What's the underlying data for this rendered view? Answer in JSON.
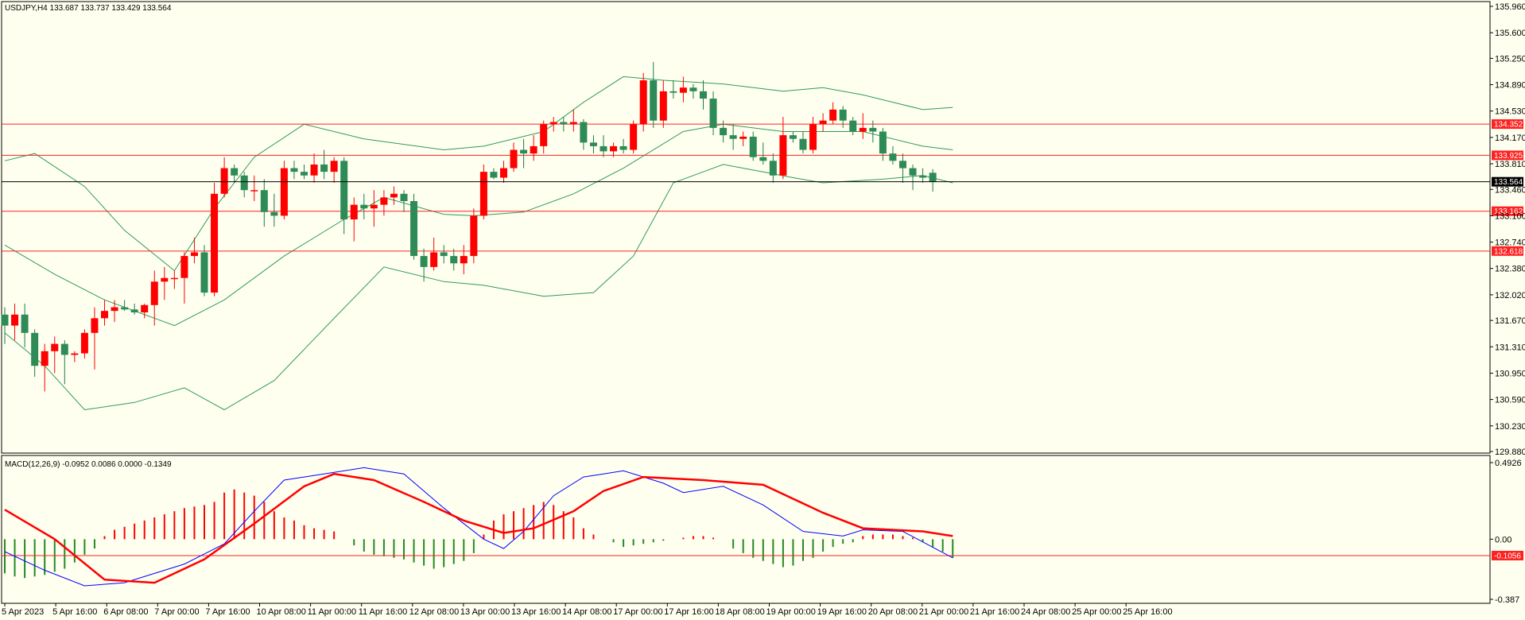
{
  "chart_data": {
    "type": "candlestick",
    "symbol_header": "USDJPY,H4  133.687 133.737 133.429 133.564",
    "price_ylim": [
      129.88,
      135.96
    ],
    "price_ticks": [
      "135.960",
      "135.600",
      "135.250",
      "134.890",
      "134.530",
      "134.170",
      "133.810",
      "133.460",
      "133.100",
      "132.740",
      "132.380",
      "132.020",
      "131.670",
      "131.310",
      "130.950",
      "130.590",
      "130.230",
      "129.880"
    ],
    "x_ticks": [
      "5 Apr 2023",
      "5 Apr 16:00",
      "6 Apr 08:00",
      "7 Apr 00:00",
      "7 Apr 16:00",
      "10 Apr 08:00",
      "11 Apr 00:00",
      "11 Apr 16:00",
      "12 Apr 08:00",
      "13 Apr 00:00",
      "13 Apr 16:00",
      "14 Apr 08:00",
      "17 Apr 00:00",
      "17 Apr 16:00",
      "18 Apr 08:00",
      "19 Apr 00:00",
      "19 Apr 16:00",
      "20 Apr 08:00",
      "21 Apr 00:00",
      "21 Apr 16:00",
      "24 Apr 08:00",
      "25 Apr 00:00",
      "25 Apr 16:00"
    ],
    "current_price": "133.564",
    "horizontal_levels": [
      "134.352",
      "133.925",
      "133.162",
      "132.618"
    ],
    "candles": [
      [
        131.75,
        131.85,
        131.35,
        131.6
      ],
      [
        131.6,
        131.9,
        131.4,
        131.75
      ],
      [
        131.75,
        131.9,
        131.3,
        131.5
      ],
      [
        131.5,
        131.55,
        130.9,
        131.05
      ],
      [
        131.05,
        131.35,
        130.7,
        131.25
      ],
      [
        131.25,
        131.45,
        130.95,
        131.35
      ],
      [
        131.35,
        131.4,
        130.8,
        131.2
      ],
      [
        131.2,
        131.25,
        131.1,
        131.22
      ],
      [
        131.22,
        131.55,
        131.15,
        131.5
      ],
      [
        131.5,
        131.85,
        131.0,
        131.7
      ],
      [
        131.7,
        131.95,
        131.6,
        131.8
      ],
      [
        131.8,
        131.95,
        131.65,
        131.85
      ],
      [
        131.85,
        131.95,
        131.8,
        131.82
      ],
      [
        131.82,
        131.9,
        131.75,
        131.78
      ],
      [
        131.78,
        131.9,
        131.7,
        131.88
      ],
      [
        131.88,
        132.35,
        131.6,
        132.2
      ],
      [
        132.2,
        132.4,
        131.95,
        132.25
      ],
      [
        132.25,
        132.35,
        132.1,
        132.25
      ],
      [
        132.25,
        132.6,
        131.9,
        132.55
      ],
      [
        132.55,
        132.8,
        132.45,
        132.6
      ],
      [
        132.6,
        132.7,
        132.0,
        132.05
      ],
      [
        132.05,
        133.55,
        132.0,
        133.4
      ],
      [
        133.4,
        133.9,
        133.35,
        133.75
      ],
      [
        133.75,
        133.8,
        133.55,
        133.65
      ],
      [
        133.65,
        133.7,
        133.35,
        133.45
      ],
      [
        133.45,
        133.65,
        133.3,
        133.45
      ],
      [
        133.45,
        133.6,
        132.95,
        133.15
      ],
      [
        133.15,
        133.4,
        132.95,
        133.1
      ],
      [
        133.1,
        133.85,
        133.05,
        133.75
      ],
      [
        133.75,
        133.85,
        133.6,
        133.7
      ],
      [
        133.7,
        133.8,
        133.6,
        133.65
      ],
      [
        133.65,
        133.95,
        133.55,
        133.8
      ],
      [
        133.8,
        134.0,
        133.6,
        133.7
      ],
      [
        133.7,
        133.9,
        133.55,
        133.85
      ],
      [
        133.85,
        133.9,
        132.85,
        133.05
      ],
      [
        133.05,
        133.35,
        132.75,
        133.25
      ],
      [
        133.25,
        133.4,
        133.05,
        133.2
      ],
      [
        133.2,
        133.45,
        132.95,
        133.25
      ],
      [
        133.25,
        133.45,
        133.1,
        133.35
      ],
      [
        133.35,
        133.5,
        133.25,
        133.4
      ],
      [
        133.4,
        133.45,
        133.15,
        133.3
      ],
      [
        133.3,
        133.4,
        132.5,
        132.55
      ],
      [
        132.55,
        132.65,
        132.2,
        132.4
      ],
      [
        132.4,
        132.8,
        132.35,
        132.6
      ],
      [
        132.6,
        132.7,
        132.45,
        132.55
      ],
      [
        132.55,
        132.65,
        132.35,
        132.45
      ],
      [
        132.45,
        132.7,
        132.3,
        132.55
      ],
      [
        132.55,
        133.2,
        132.45,
        133.1
      ],
      [
        133.1,
        133.8,
        133.05,
        133.7
      ],
      [
        133.7,
        133.75,
        133.6,
        133.62
      ],
      [
        133.62,
        133.85,
        133.55,
        133.75
      ],
      [
        133.75,
        134.1,
        133.7,
        134.0
      ],
      [
        134.0,
        134.15,
        133.75,
        133.95
      ],
      [
        133.95,
        134.2,
        133.85,
        134.05
      ],
      [
        134.05,
        134.4,
        133.95,
        134.35
      ],
      [
        134.35,
        134.45,
        134.25,
        134.38
      ],
      [
        134.38,
        134.45,
        134.25,
        134.35
      ],
      [
        134.35,
        134.55,
        134.25,
        134.38
      ],
      [
        134.38,
        134.42,
        134.0,
        134.1
      ],
      [
        134.1,
        134.2,
        133.95,
        134.05
      ],
      [
        134.05,
        134.2,
        133.9,
        133.98
      ],
      [
        133.98,
        134.1,
        133.9,
        134.05
      ],
      [
        134.05,
        134.15,
        133.95,
        134.0
      ],
      [
        134.0,
        134.4,
        133.95,
        134.35
      ],
      [
        134.35,
        135.05,
        134.25,
        134.95
      ],
      [
        134.95,
        135.2,
        134.3,
        134.4
      ],
      [
        134.4,
        134.95,
        134.3,
        134.8
      ],
      [
        134.8,
        134.95,
        134.7,
        134.78
      ],
      [
        134.78,
        135.0,
        134.65,
        134.85
      ],
      [
        134.85,
        134.9,
        134.7,
        134.8
      ],
      [
        134.8,
        134.95,
        134.55,
        134.7
      ],
      [
        134.7,
        134.8,
        134.2,
        134.3
      ],
      [
        134.3,
        134.4,
        134.1,
        134.2
      ],
      [
        134.2,
        134.35,
        134.0,
        134.15
      ],
      [
        134.15,
        134.25,
        134.05,
        134.18
      ],
      [
        134.18,
        134.25,
        133.85,
        133.9
      ],
      [
        133.9,
        134.1,
        133.8,
        133.85
      ],
      [
        133.85,
        133.95,
        133.55,
        133.65
      ],
      [
        133.65,
        134.45,
        133.6,
        134.2
      ],
      [
        134.2,
        134.25,
        134.1,
        134.15
      ],
      [
        134.15,
        134.25,
        133.95,
        134.0
      ],
      [
        134.0,
        134.45,
        133.95,
        134.35
      ],
      [
        134.35,
        134.5,
        134.25,
        134.4
      ],
      [
        134.4,
        134.65,
        134.35,
        134.55
      ],
      [
        134.55,
        134.6,
        134.3,
        134.4
      ],
      [
        134.4,
        134.45,
        134.2,
        134.25
      ],
      [
        134.25,
        134.5,
        134.15,
        134.3
      ],
      [
        134.3,
        134.4,
        134.1,
        134.25
      ],
      [
        134.25,
        134.3,
        133.85,
        133.95
      ],
      [
        133.95,
        134.05,
        133.8,
        133.85
      ],
      [
        133.85,
        133.95,
        133.55,
        133.75
      ],
      [
        133.75,
        133.8,
        133.45,
        133.65
      ],
      [
        133.65,
        133.75,
        133.55,
        133.62
      ],
      [
        133.687,
        133.737,
        133.429,
        133.564
      ]
    ],
    "bb_upper": [
      [
        0,
        133.85
      ],
      [
        3,
        133.95
      ],
      [
        8,
        133.5
      ],
      [
        12,
        132.9
      ],
      [
        17,
        132.35
      ],
      [
        21,
        133.2
      ],
      [
        25,
        133.9
      ],
      [
        30,
        134.35
      ],
      [
        36,
        134.15
      ],
      [
        44,
        134.0
      ],
      [
        48,
        134.05
      ],
      [
        54,
        134.25
      ],
      [
        58,
        134.65
      ],
      [
        62,
        135.0
      ],
      [
        66,
        134.95
      ],
      [
        72,
        134.9
      ],
      [
        78,
        134.8
      ],
      [
        82,
        134.85
      ],
      [
        86,
        134.75
      ],
      [
        92,
        134.55
      ],
      [
        95,
        134.58
      ]
    ],
    "bb_middle": [
      [
        0,
        132.7
      ],
      [
        5,
        132.3
      ],
      [
        10,
        131.95
      ],
      [
        17,
        131.6
      ],
      [
        22,
        131.95
      ],
      [
        28,
        132.55
      ],
      [
        34,
        133.05
      ],
      [
        38,
        133.35
      ],
      [
        44,
        133.12
      ],
      [
        47,
        133.1
      ],
      [
        52,
        133.15
      ],
      [
        57,
        133.4
      ],
      [
        62,
        133.75
      ],
      [
        68,
        134.25
      ],
      [
        72,
        134.35
      ],
      [
        78,
        134.25
      ],
      [
        82,
        134.25
      ],
      [
        86,
        134.25
      ],
      [
        92,
        134.05
      ],
      [
        95,
        134.0
      ]
    ],
    "bb_lower": [
      [
        0,
        131.5
      ],
      [
        4,
        131.05
      ],
      [
        8,
        130.45
      ],
      [
        13,
        130.55
      ],
      [
        18,
        130.75
      ],
      [
        22,
        130.45
      ],
      [
        27,
        130.85
      ],
      [
        33,
        131.7
      ],
      [
        38,
        132.4
      ],
      [
        44,
        132.2
      ],
      [
        48,
        132.15
      ],
      [
        54,
        132.0
      ],
      [
        59,
        132.05
      ],
      [
        63,
        132.55
      ],
      [
        67,
        133.55
      ],
      [
        72,
        133.8
      ],
      [
        76,
        133.7
      ],
      [
        79,
        133.62
      ],
      [
        82,
        133.55
      ],
      [
        88,
        133.6
      ],
      [
        92,
        133.65
      ],
      [
        95,
        133.55
      ]
    ],
    "macd_header": "MACD(12,26,9) -0.0952 0.0086 0.0000 -0.1349",
    "macd_ylim": [
      -0.387,
      0.4926
    ],
    "macd_ticks": [
      "0.4926",
      "0.00",
      "-0.387"
    ],
    "macd_level_tag": "-0.1056",
    "macd_level": -0.1056,
    "macd_hist": [
      -0.22,
      -0.24,
      -0.25,
      -0.24,
      -0.23,
      -0.21,
      -0.19,
      -0.15,
      -0.1,
      -0.06,
      0.02,
      0.06,
      0.08,
      0.1,
      0.12,
      0.14,
      0.16,
      0.18,
      0.2,
      0.21,
      0.22,
      0.24,
      0.3,
      0.32,
      0.3,
      0.28,
      0.24,
      0.18,
      0.14,
      0.12,
      0.09,
      0.07,
      0.06,
      0.05,
      0.0,
      -0.04,
      -0.08,
      -0.1,
      -0.11,
      -0.12,
      -0.13,
      -0.15,
      -0.17,
      -0.19,
      -0.18,
      -0.16,
      -0.14,
      -0.09,
      0.03,
      0.12,
      0.16,
      0.18,
      0.2,
      0.22,
      0.24,
      0.22,
      0.18,
      0.14,
      0.07,
      0.03,
      0.0,
      -0.02,
      -0.05,
      -0.04,
      -0.03,
      -0.02,
      -0.01,
      0.0,
      0.01,
      0.02,
      0.02,
      0.01,
      0.0,
      -0.06,
      -0.09,
      -0.12,
      -0.14,
      -0.16,
      -0.18,
      -0.17,
      -0.14,
      -0.12,
      -0.08,
      -0.05,
      -0.03,
      -0.02,
      0.02,
      0.03,
      0.03,
      0.03,
      0.02,
      0.01,
      -0.02,
      -0.05,
      -0.08,
      -0.12
    ],
    "macd_main": [
      [
        0,
        -0.08
      ],
      [
        4,
        -0.2
      ],
      [
        8,
        -0.3
      ],
      [
        12,
        -0.28
      ],
      [
        18,
        -0.16
      ],
      [
        22,
        -0.03
      ],
      [
        25,
        0.18
      ],
      [
        28,
        0.38
      ],
      [
        30,
        0.4
      ],
      [
        36,
        0.46
      ],
      [
        40,
        0.42
      ],
      [
        44,
        0.2
      ],
      [
        48,
        0.0
      ],
      [
        50,
        -0.06
      ],
      [
        52,
        0.05
      ],
      [
        55,
        0.28
      ],
      [
        58,
        0.4
      ],
      [
        62,
        0.44
      ],
      [
        66,
        0.36
      ],
      [
        68,
        0.3
      ],
      [
        72,
        0.34
      ],
      [
        76,
        0.22
      ],
      [
        80,
        0.05
      ],
      [
        84,
        0.02
      ],
      [
        86,
        0.06
      ],
      [
        90,
        0.05
      ],
      [
        95,
        -0.12
      ]
    ],
    "macd_signal": [
      [
        0,
        0.19
      ],
      [
        5,
        0.0
      ],
      [
        10,
        -0.26
      ],
      [
        15,
        -0.28
      ],
      [
        20,
        -0.13
      ],
      [
        25,
        0.1
      ],
      [
        30,
        0.34
      ],
      [
        33,
        0.42
      ],
      [
        37,
        0.38
      ],
      [
        42,
        0.24
      ],
      [
        46,
        0.12
      ],
      [
        50,
        0.04
      ],
      [
        53,
        0.07
      ],
      [
        57,
        0.18
      ],
      [
        60,
        0.31
      ],
      [
        64,
        0.4
      ],
      [
        70,
        0.38
      ],
      [
        76,
        0.35
      ],
      [
        82,
        0.17
      ],
      [
        86,
        0.07
      ],
      [
        92,
        0.05
      ],
      [
        95,
        0.02
      ]
    ]
  }
}
